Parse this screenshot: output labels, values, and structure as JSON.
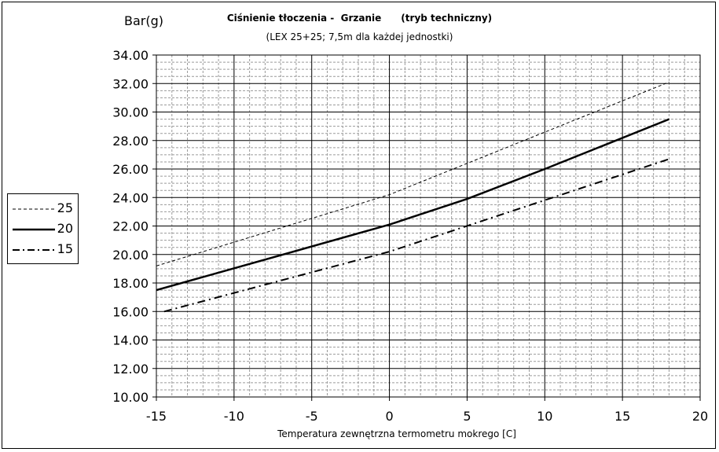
{
  "chart_data": {
    "type": "line",
    "title": "Ciśnienie tłoczenia -  Grzanie      (tryb techniczny)",
    "subtitle": "(LEX 25+25; 7,5m dla każdej jednostki)",
    "ylabel": "Bar(g)",
    "xlabel": "Temperatura zewnętrzna termometru mokrego [C]",
    "xlim": [
      -15,
      20
    ],
    "ylim": [
      10,
      34
    ],
    "x_ticks": [
      "-15",
      "-10",
      "-5",
      "0",
      "5",
      "10",
      "15",
      "20"
    ],
    "y_ticks": [
      "10.00",
      "12.00",
      "14.00",
      "16.00",
      "18.00",
      "20.00",
      "22.00",
      "24.00",
      "26.00",
      "28.00",
      "30.00",
      "32.00",
      "34.00"
    ],
    "grid": true,
    "legend_position": "left-middle",
    "series": [
      {
        "name": "25",
        "style": "dashed-thin",
        "x": [
          -15,
          0,
          18
        ],
        "y": [
          19.2,
          24.2,
          32.1
        ]
      },
      {
        "name": "20",
        "style": "solid-thick",
        "x": [
          -15,
          0,
          5,
          10,
          18
        ],
        "y": [
          17.5,
          22.1,
          23.9,
          26.0,
          29.5
        ]
      },
      {
        "name": "15",
        "style": "dash-dot",
        "x": [
          -14.5,
          0,
          18
        ],
        "y": [
          16.0,
          20.2,
          26.7
        ]
      }
    ]
  }
}
